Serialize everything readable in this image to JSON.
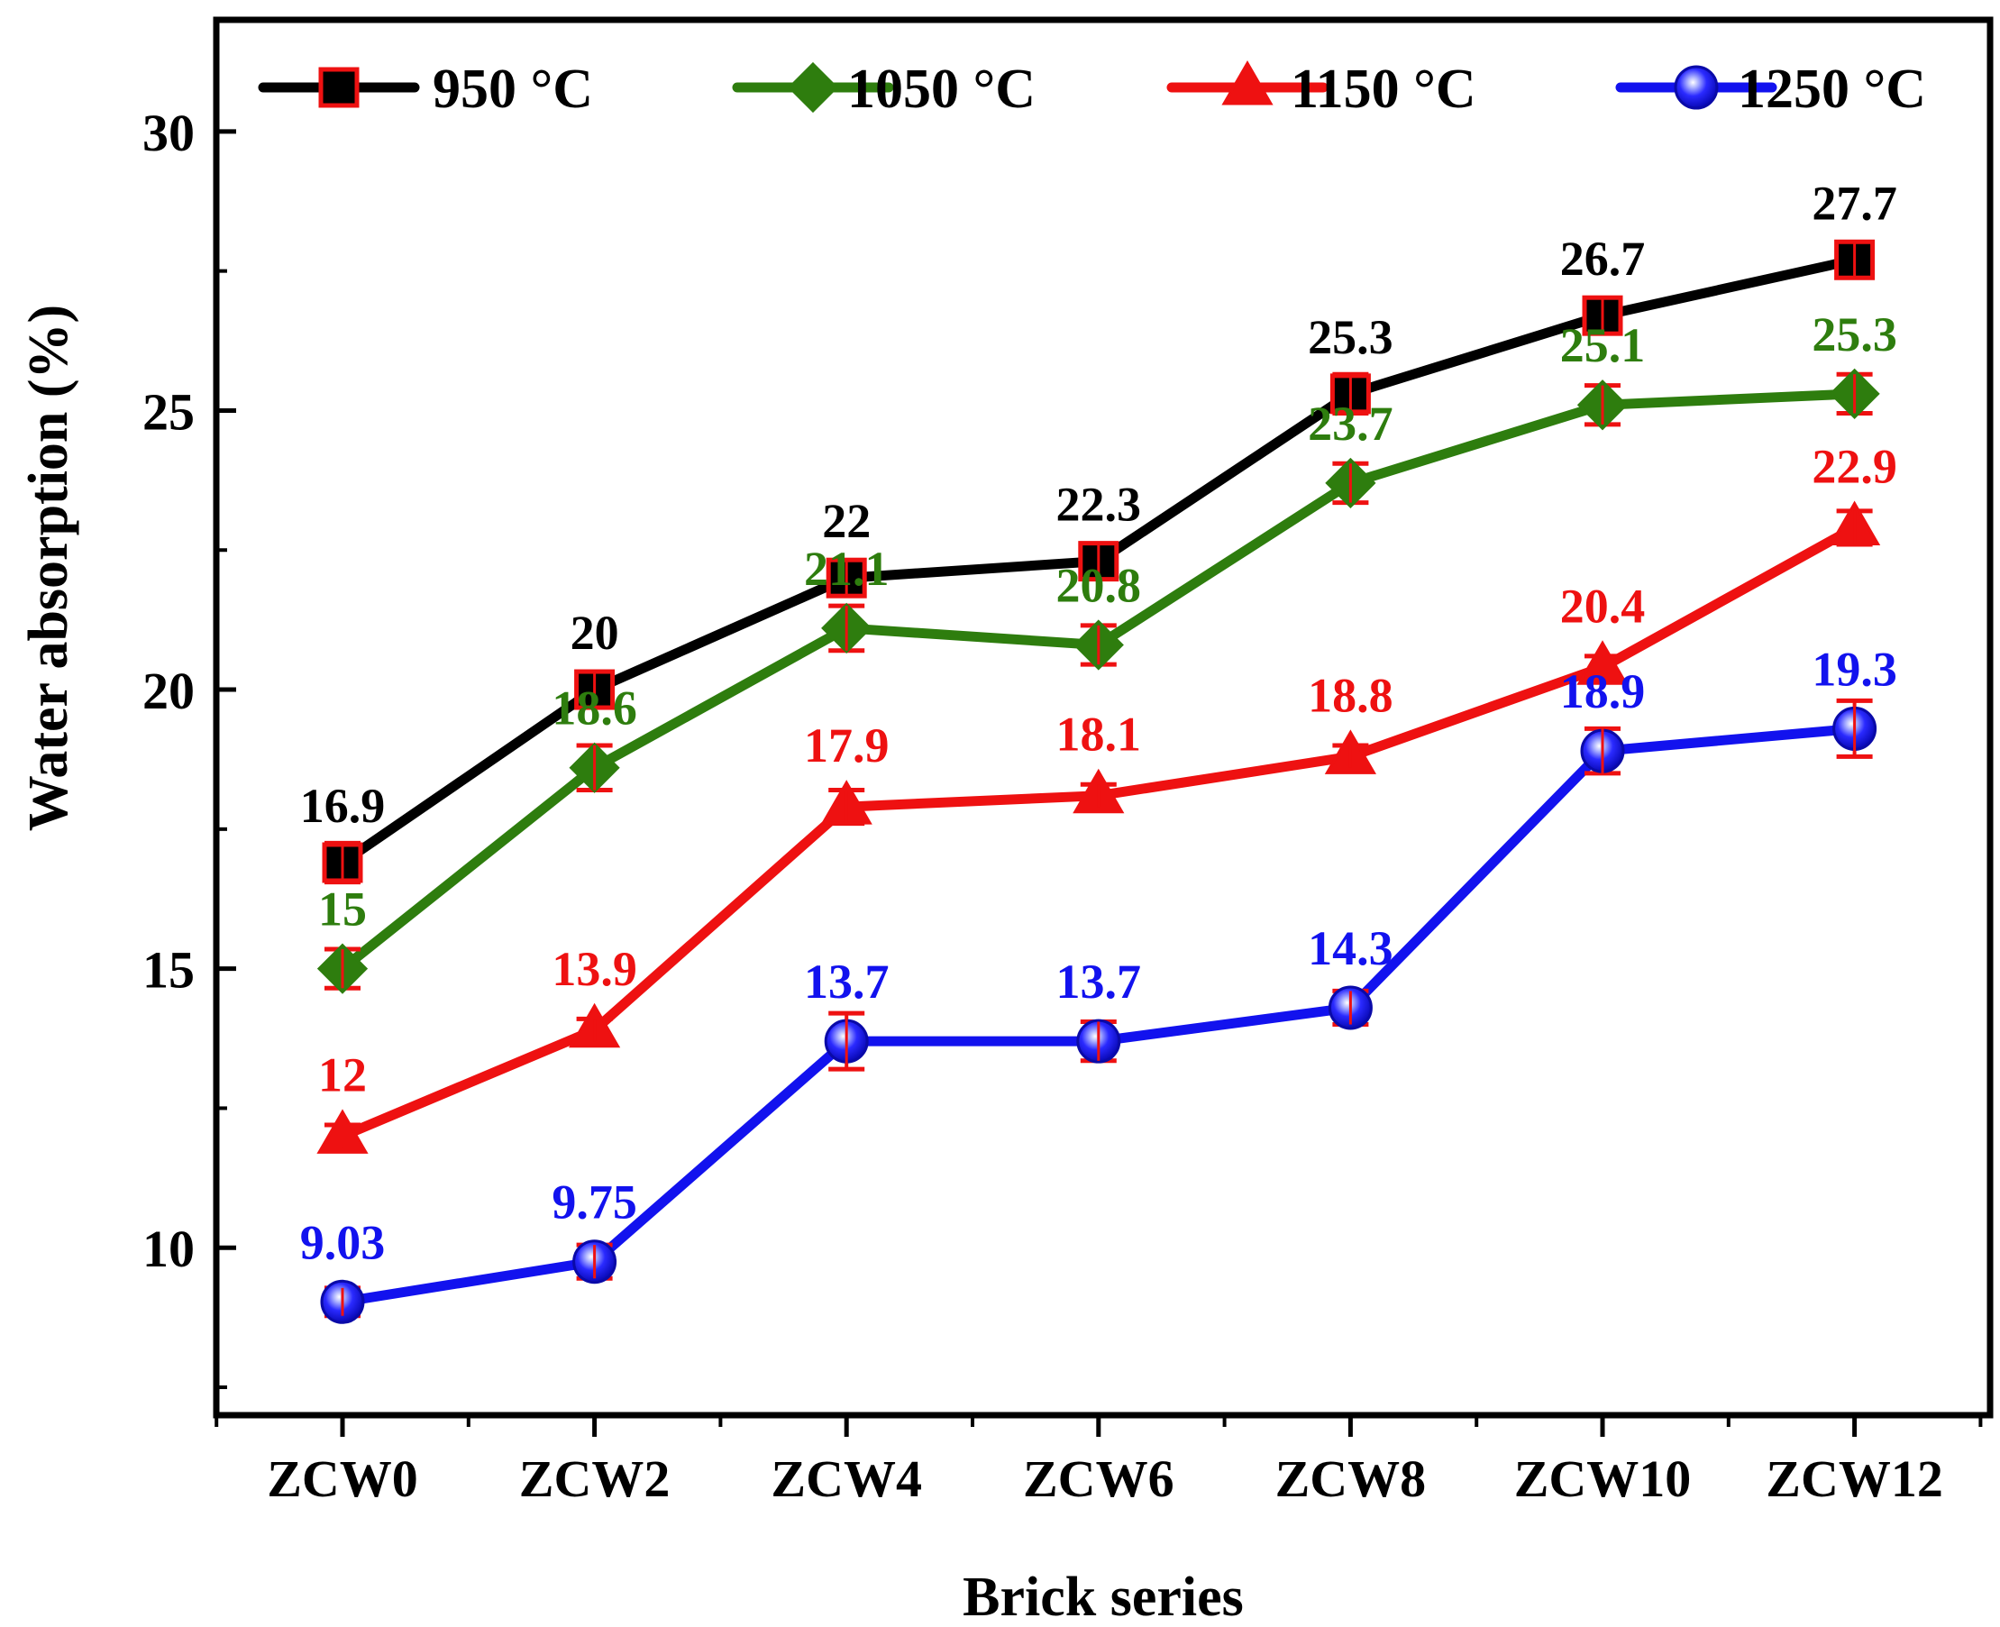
{
  "chart_data": {
    "type": "line",
    "title": "",
    "xlabel": "Brick series",
    "ylabel": "Water absorption (%)",
    "categories": [
      "ZCW0",
      "ZCW2",
      "ZCW4",
      "ZCW6",
      "ZCW8",
      "ZCW10",
      "ZCW12"
    ],
    "ylim": [
      7,
      32
    ],
    "yticks": [
      10,
      15,
      20,
      25,
      30
    ],
    "grid": false,
    "legend_position": "top",
    "series": [
      {
        "name": "950 °C",
        "color": "#000000",
        "marker": "square",
        "values": [
          16.9,
          20,
          22,
          22.3,
          25.3,
          26.7,
          27.7
        ],
        "labels": [
          "16.9",
          "20",
          "22",
          "22.3",
          "25.3",
          "26.7",
          "27.7"
        ],
        "errors": [
          0.35,
          0.3,
          0.3,
          0.3,
          0.35,
          0.3,
          0.3
        ]
      },
      {
        "name": "1050 °C",
        "color": "#2e7d0e",
        "marker": "diamond",
        "values": [
          15,
          18.6,
          21.1,
          20.8,
          23.7,
          25.1,
          25.3
        ],
        "labels": [
          "15",
          "18.6",
          "21.1",
          "20.8",
          "23.7",
          "25.1",
          "25.3"
        ],
        "errors": [
          0.35,
          0.4,
          0.4,
          0.35,
          0.35,
          0.35,
          0.35
        ]
      },
      {
        "name": "1150 °C",
        "color": "#ee1111",
        "marker": "triangle",
        "values": [
          12,
          13.9,
          17.9,
          18.1,
          18.8,
          20.4,
          22.9
        ],
        "labels": [
          "12",
          "13.9",
          "17.9",
          "18.1",
          "18.8",
          "20.4",
          "22.9"
        ],
        "errors": [
          0.2,
          0.2,
          0.3,
          0.2,
          0.2,
          0.2,
          0.3
        ]
      },
      {
        "name": "1250 °C",
        "color": "#1212ee",
        "marker": "circle",
        "values": [
          9.03,
          9.75,
          13.7,
          13.7,
          14.3,
          18.9,
          19.3
        ],
        "labels": [
          "9.03",
          "9.75",
          "13.7",
          "13.7",
          "14.3",
          "18.9",
          "19.3"
        ],
        "errors": [
          0.25,
          0.3,
          0.5,
          0.35,
          0.3,
          0.4,
          0.5
        ]
      }
    ]
  }
}
